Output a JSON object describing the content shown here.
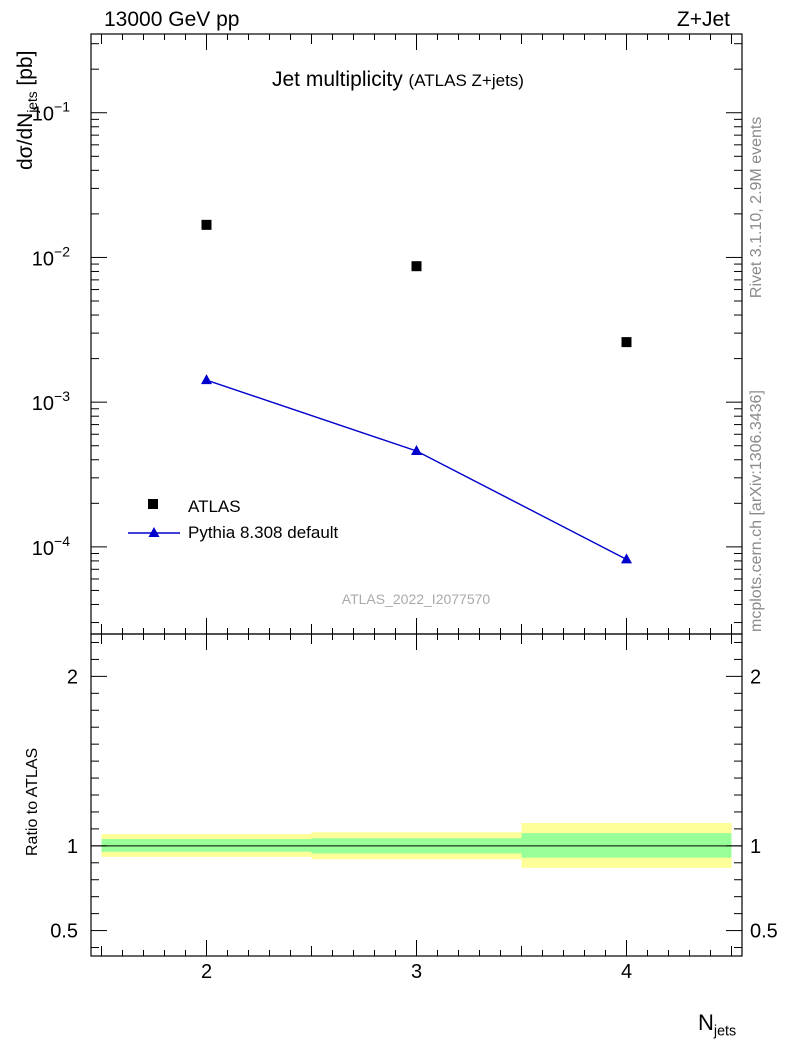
{
  "header": {
    "left": "13000 GeV pp",
    "right": "Z+Jet"
  },
  "title": {
    "main": "Jet multiplicity",
    "sub": "(ATLAS Z+jets)"
  },
  "side": {
    "rivet": "Rivet 3.1.10,  2.9M events",
    "ref": "mcplots.cern.ch [arXiv:1306.3436]"
  },
  "watermark": "ATLAS_2022_I2077570",
  "axes": {
    "ylabel_prefix": "dσ/dN",
    "ylabel_sub": "jets",
    "ylabel_suffix": " [pb]",
    "xlabel_main": "N",
    "xlabel_sub": "jets",
    "ratio_ylabel": "Ratio to ATLAS"
  },
  "chart_data": [
    {
      "type": "scatter",
      "x": [
        2,
        3,
        4
      ],
      "xlim": [
        1.45,
        4.55
      ],
      "ylim": [
        2.5e-05,
        0.35
      ],
      "log_y": true,
      "x_ticks": [
        2,
        3,
        4
      ],
      "y_ticks": [
        {
          "value": 0.1,
          "base": "10",
          "exp": "−1"
        },
        {
          "value": 0.01,
          "base": "10",
          "exp": "−2"
        },
        {
          "value": 0.001,
          "base": "10",
          "exp": "−3"
        },
        {
          "value": 0.0001,
          "base": "10",
          "exp": "−4"
        }
      ],
      "series": [
        {
          "name": "ATLAS",
          "values": [
            0.0168,
            0.0087,
            0.0026
          ],
          "marker": "square",
          "color": "#000000"
        },
        {
          "name": "Pythia 8.308 default",
          "values": [
            0.00142,
            0.00046,
            8.2e-05
          ],
          "marker": "triangle",
          "color": "#0000cc"
        }
      ],
      "legend": "middle-left"
    },
    {
      "type": "area",
      "ylabel": "Ratio to ATLAS",
      "xlim": [
        1.45,
        4.55
      ],
      "ylim": [
        0.35,
        2.25
      ],
      "y_ticks": [
        0.5,
        1,
        2
      ],
      "y_tick_labels": [
        "0.5",
        "1",
        "2"
      ],
      "x_tick_labels": [
        "2",
        "3",
        "4"
      ],
      "bins": [
        {
          "x_low": 1.5,
          "x_high": 2.5,
          "stat_low": 0.965,
          "stat_high": 1.04,
          "total_low": 0.935,
          "total_high": 1.07
        },
        {
          "x_low": 2.5,
          "x_high": 3.5,
          "stat_low": 0.955,
          "stat_high": 1.045,
          "total_low": 0.92,
          "total_high": 1.08
        },
        {
          "x_low": 3.5,
          "x_high": 4.5,
          "stat_low": 0.93,
          "stat_high": 1.075,
          "total_low": 0.87,
          "total_high": 1.135
        }
      ],
      "reference_line": 1
    }
  ]
}
